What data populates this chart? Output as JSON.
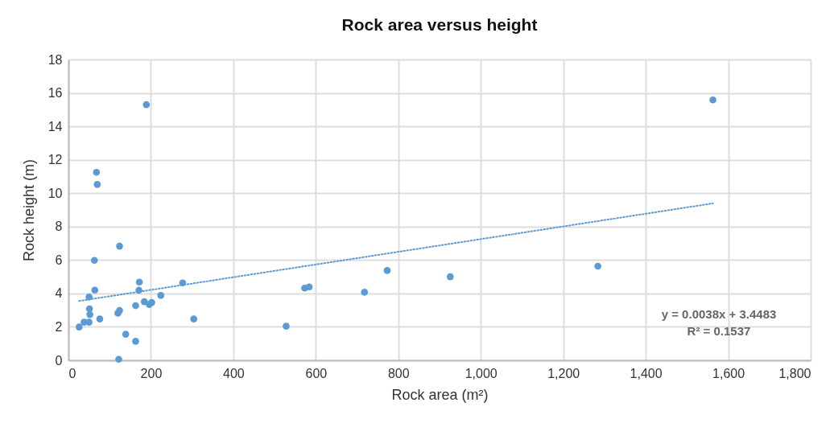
{
  "chart_data": {
    "type": "scatter",
    "title": "Rock area versus height",
    "xlabel": "Rock area (m²)",
    "ylabel": "Rock height (m)",
    "x": [
      26,
      38,
      50,
      50,
      51,
      52,
      63,
      64,
      68,
      70,
      76,
      120,
      122,
      124,
      124,
      139,
      163,
      163,
      171,
      172,
      184,
      189,
      196,
      202,
      224,
      277,
      304,
      528,
      573,
      584,
      718,
      773,
      926,
      1284,
      1563
    ],
    "series": [
      {
        "color": "#5b9bd5",
        "marker": "circle",
        "values": [
          1.99,
          2.28,
          2.28,
          3.79,
          3.08,
          2.74,
          5.98,
          4.2,
          11.25,
          10.52,
          2.47,
          2.82,
          0.06,
          6.83,
          2.98,
          1.56,
          1.14,
          3.27,
          4.19,
          4.68,
          3.51,
          15.3,
          3.34,
          3.46,
          3.88,
          4.63,
          2.47,
          2.04,
          4.32,
          4.39,
          4.07,
          5.37,
          5.0,
          5.63,
          15.58
        ]
      },
      {
        "type": "line",
        "color": "#5b9bd5",
        "line_style": "dotted",
        "x": [
          26,
          1563
        ],
        "values": [
          3.55,
          9.39
        ]
      }
    ],
    "xlim": [
      0,
      1800
    ],
    "xticks": [
      0,
      200,
      400,
      600,
      800,
      {
        "value": 1000,
        "label": "1,000"
      },
      {
        "value": 1200,
        "label": "1,200"
      },
      {
        "value": 1400,
        "label": "1,400"
      },
      {
        "value": 1600,
        "label": "1,600"
      },
      {
        "value": 1800,
        "label": "1,800"
      }
    ],
    "ylim": [
      0,
      18
    ],
    "yticks": [
      0,
      2,
      4,
      6,
      8,
      10,
      12,
      14,
      16,
      18
    ],
    "grid": true,
    "annotations": [
      "y = 0.0038x + 3.4483",
      "R² = 0.1537"
    ]
  }
}
